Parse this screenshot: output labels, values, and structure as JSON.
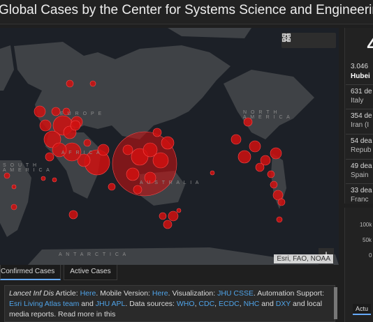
{
  "title": "Global Cases by the Center for Systems Science and Engineering",
  "map": {
    "labels": {
      "europe": "E U R O P E",
      "africa": "A F R I C A",
      "south_america": "S O U T H\nA M E R I C A",
      "north_america": "N O R T H\nA M E R I C A",
      "australia": "A U S T R A L I A",
      "antarctica": "A N T A R C T I C A"
    },
    "attribution": "Esri, FAO, NOAA",
    "zoom_in": "+",
    "zoom_out": "−",
    "tools": [
      "bookmark-icon",
      "list-icon",
      "qr-grid-icon"
    ]
  },
  "tabs": [
    "Confirmed Cases",
    "Active Cases"
  ],
  "info": {
    "journal": "Lancet Inf Dis",
    "article_prefix": " Article: ",
    "here1": "Here",
    "mobile": ". Mobile Version: ",
    "here2": "Here",
    "viz": ". Visualization: ",
    "jhu_csse": "JHU CSSE",
    "automation": ". Automation Support: ",
    "esri": "Esri Living Atlas team",
    "and": " and ",
    "jhu_apl": "JHU APL",
    "sources_prefix": ". Data sources: ",
    "who": "WHO",
    "cdc": "CDC",
    "ecdc": "ECDC",
    "nhc": "NHC",
    "dxy": "DXY",
    "sources_suffix": " and local media reports. Read more in this"
  },
  "right_panel": {
    "big_number": "4",
    "hubei_count": "3.046",
    "hubei_name": "Hubei",
    "deaths": [
      {
        "count": "631 de",
        "place": "Italy"
      },
      {
        "count": "354 de",
        "place": "Iran (I"
      },
      {
        "count": "54 dea",
        "place": "Repub"
      },
      {
        "count": "49 dea",
        "place": "Spain"
      },
      {
        "count": "33 dea",
        "place": "Franc"
      }
    ],
    "ticks": [
      "100k",
      "50k",
      "0"
    ],
    "tab": "Actu"
  }
}
